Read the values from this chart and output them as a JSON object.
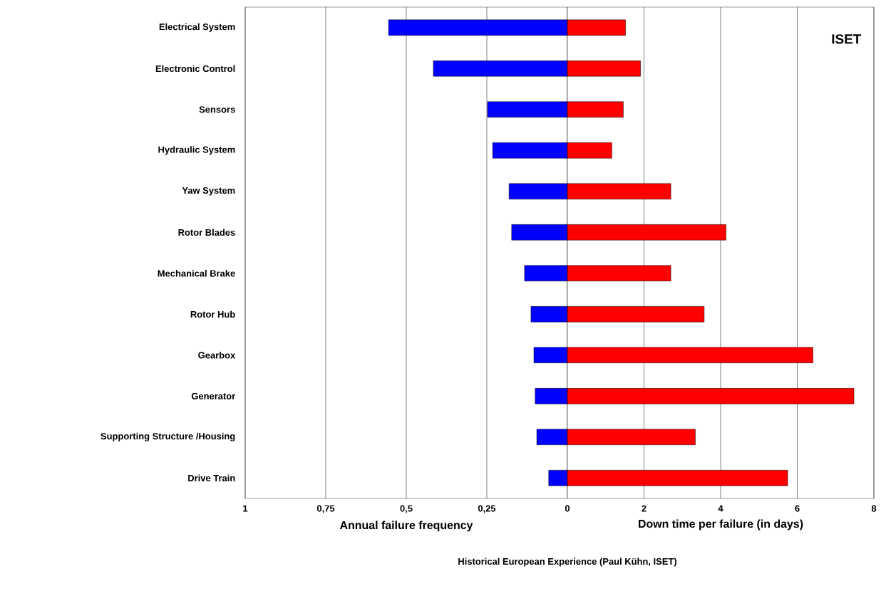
{
  "chart_data": [
    {
      "type": "bar",
      "orientation": "horizontal",
      "categories": [
        "Electrical System",
        "Electronic Control",
        "Sensors",
        "Hydraulic System",
        "Yaw System",
        "Rotor Blades",
        "Mechanical Brake",
        "Rotor Hub",
        "Gearbox",
        "Generator",
        "Supporting Structure /Housing",
        "Drive Train"
      ],
      "values": [
        0.555,
        0.416,
        0.248,
        0.232,
        0.181,
        0.173,
        0.133,
        0.113,
        0.104,
        0.1,
        0.095,
        0.058
      ],
      "color": "#0000ff",
      "xlim": [
        1,
        0
      ],
      "xticks": [
        1,
        {
          "value": 0.75,
          "label": "0,75"
        },
        {
          "value": 0.5,
          "label": "0,5"
        },
        {
          "value": 0.25,
          "label": "0,25"
        },
        0
      ],
      "xlabel": "Annual failure frequency",
      "grid": "x"
    },
    {
      "type": "bar",
      "orientation": "horizontal",
      "values": [
        1.52,
        1.91,
        1.46,
        1.16,
        2.7,
        4.14,
        2.7,
        3.57,
        6.41,
        7.48,
        3.34,
        5.75
      ],
      "color": "#ff0000",
      "xlim": [
        0,
        8
      ],
      "xticks": [
        2,
        4,
        6,
        8
      ],
      "xlabel": "Down time per failure (in days)",
      "grid": "x",
      "tick_labels": "x",
      "annotations": [
        "ISET",
        "Historical European Experience (Paul Kühn, ISET)"
      ]
    }
  ]
}
